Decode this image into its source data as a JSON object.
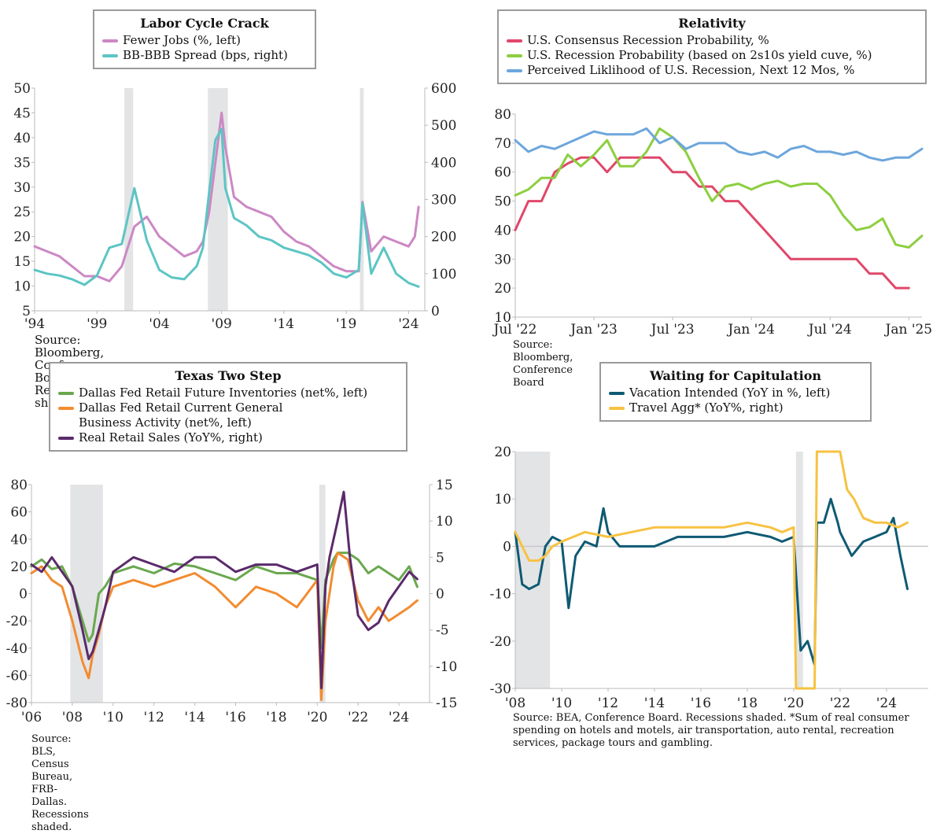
{
  "chart_data": [
    {
      "id": "labor",
      "type": "line",
      "title": "Labor Cycle Crack",
      "source": "Source: Bloomberg, Conference Board. Recessions shaded.",
      "x_ticks": [
        "'94",
        "'99",
        "'04",
        "'09",
        "'14",
        "'19",
        "'24"
      ],
      "xlim": [
        1994,
        2025.3
      ],
      "ylim_left": [
        5,
        50
      ],
      "yticks_left": [
        5,
        10,
        15,
        20,
        25,
        30,
        35,
        40,
        45,
        50
      ],
      "ylim_right": [
        0,
        600
      ],
      "yticks_right": [
        0,
        100,
        200,
        300,
        400,
        500,
        600
      ],
      "recessions": [
        [
          2001.2,
          2001.9
        ],
        [
          2007.9,
          2009.5
        ],
        [
          2020.1,
          2020.4
        ]
      ],
      "series": [
        {
          "name": "Fewer Jobs (%, left)",
          "color": "#cc88c4",
          "axis": "left",
          "x": [
            1994,
            1995,
            1996,
            1997,
            1998,
            1999,
            2000,
            2001,
            2002,
            2003,
            2004,
            2005,
            2006,
            2007,
            2007.5,
            2008,
            2008.5,
            2009,
            2009.3,
            2010,
            2011,
            2012,
            2013,
            2014,
            2015,
            2016,
            2017,
            2018,
            2019,
            2020,
            2020.3,
            2021,
            2022,
            2023,
            2024,
            2024.5,
            2024.8
          ],
          "y": [
            18,
            17,
            16,
            14,
            12,
            12,
            11,
            14,
            22,
            24,
            20,
            18,
            16,
            17,
            19,
            25,
            35,
            45,
            38,
            28,
            26,
            25,
            24,
            21,
            19,
            18,
            16,
            14,
            13,
            13,
            27,
            17,
            20,
            19,
            18,
            20,
            26
          ]
        },
        {
          "name": "BB-BBB Spread (bps, right)",
          "color": "#5cc5c4",
          "axis": "right",
          "x": [
            1994,
            1995,
            1996,
            1997,
            1998,
            1999,
            2000,
            2001,
            2002,
            2003,
            2004,
            2005,
            2006,
            2007,
            2007.5,
            2008,
            2008.5,
            2009,
            2009.3,
            2010,
            2011,
            2012,
            2013,
            2014,
            2015,
            2016,
            2017,
            2018,
            2019,
            2020,
            2020.3,
            2021,
            2022,
            2023,
            2024,
            2024.8
          ],
          "y": [
            110,
            100,
            95,
            85,
            70,
            95,
            170,
            180,
            330,
            190,
            110,
            90,
            85,
            120,
            170,
            320,
            460,
            490,
            330,
            250,
            230,
            200,
            190,
            170,
            160,
            150,
            130,
            100,
            90,
            110,
            290,
            100,
            170,
            100,
            75,
            65
          ]
        }
      ]
    },
    {
      "id": "relativity",
      "type": "line",
      "title": "Relativity",
      "source": "Source: Bloomberg, Conference Board",
      "x_ticks": [
        "Jul '22",
        "Jan '23",
        "Jul '23",
        "Jan '24",
        "Jul '24",
        "Jan '25"
      ],
      "xlim": [
        0,
        31
      ],
      "ylim": [
        10,
        80
      ],
      "yticks": [
        10,
        20,
        30,
        40,
        50,
        60,
        70,
        80
      ],
      "series": [
        {
          "name": "U.S. Consensus Recession Probability, %",
          "color": "#e0476a",
          "x": [
            0,
            1,
            2,
            3,
            4,
            5,
            6,
            7,
            8,
            9,
            10,
            11,
            12,
            13,
            14,
            15,
            16,
            17,
            18,
            19,
            20,
            21,
            22,
            23,
            24,
            25,
            26,
            27,
            28,
            29,
            30
          ],
          "y": [
            40,
            50,
            50,
            60,
            63,
            65,
            65,
            60,
            65,
            65,
            65,
            65,
            60,
            60,
            55,
            55,
            50,
            50,
            45,
            40,
            35,
            30,
            30,
            30,
            30,
            30,
            30,
            25,
            25,
            20,
            20
          ]
        },
        {
          "name": "U.S. Recession Probability (based on 2s10s yield cuve, %)",
          "color": "#8ccf3f",
          "x": [
            0,
            1,
            2,
            3,
            4,
            5,
            6,
            7,
            8,
            9,
            10,
            11,
            12,
            13,
            14,
            15,
            16,
            17,
            18,
            19,
            20,
            21,
            22,
            23,
            24,
            25,
            26,
            27,
            28,
            29,
            30,
            31
          ],
          "y": [
            52,
            54,
            58,
            58,
            66,
            62,
            66,
            71,
            62,
            62,
            67,
            75,
            72,
            67,
            58,
            50,
            55,
            56,
            54,
            56,
            57,
            55,
            56,
            56,
            52,
            45,
            40,
            41,
            44,
            35,
            34,
            38
          ]
        },
        {
          "name": "Perceived Liklihood of U.S. Recession, Next 12 Mos, %",
          "color": "#6da6dc",
          "x": [
            0,
            1,
            2,
            3,
            4,
            5,
            6,
            7,
            8,
            9,
            10,
            11,
            12,
            13,
            14,
            15,
            16,
            17,
            18,
            19,
            20,
            21,
            22,
            23,
            24,
            25,
            26,
            27,
            28,
            29,
            30,
            31
          ],
          "y": [
            71,
            67,
            69,
            68,
            70,
            72,
            74,
            73,
            73,
            73,
            75,
            70,
            72,
            68,
            70,
            70,
            70,
            67,
            66,
            67,
            65,
            68,
            69,
            67,
            67,
            66,
            67,
            65,
            64,
            65,
            65,
            68
          ]
        }
      ]
    },
    {
      "id": "texas",
      "type": "line",
      "title": "Texas Two Step",
      "source": "Source: BLS, Census Bureau, FRB-Dallas. Recessions shaded.",
      "x_ticks": [
        "'06",
        "'08",
        "'10",
        "'12",
        "'14",
        "'16",
        "'18",
        "'20",
        "'22",
        "'24"
      ],
      "xlim": [
        2006,
        2025.5
      ],
      "ylim_left": [
        -80,
        80
      ],
      "yticks_left": [
        -80,
        -60,
        -40,
        -20,
        0,
        20,
        40,
        60,
        80
      ],
      "ylim_right": [
        -15,
        15
      ],
      "yticks_right": [
        -15,
        -10,
        -5,
        0,
        5,
        10,
        15
      ],
      "recessions": [
        [
          2007.9,
          2009.5
        ],
        [
          2020.1,
          2020.4
        ]
      ],
      "series": [
        {
          "name": "Dallas Fed Retail Future Inventories (net%, left)",
          "color": "#6aa84f",
          "axis": "left",
          "x": [
            2006,
            2006.5,
            2007,
            2007.5,
            2008,
            2008.5,
            2008.8,
            2009,
            2009.3,
            2009.6,
            2010,
            2011,
            2012,
            2013,
            2014,
            2015,
            2016,
            2017,
            2018,
            2019,
            2020,
            2020.2,
            2020.4,
            2020.8,
            2021,
            2021.5,
            2022,
            2022.5,
            2023,
            2023.5,
            2024,
            2024.5,
            2024.9
          ],
          "y": [
            20,
            25,
            18,
            20,
            5,
            -20,
            -35,
            -30,
            0,
            5,
            15,
            20,
            15,
            22,
            20,
            15,
            10,
            20,
            15,
            15,
            10,
            -40,
            10,
            25,
            30,
            30,
            25,
            15,
            20,
            15,
            10,
            20,
            5
          ]
        },
        {
          "name": "Dallas Fed Retail Current General Business Activity (net%, left)",
          "color": "#f28c30",
          "axis": "left",
          "x": [
            2006,
            2006.5,
            2007,
            2007.5,
            2008,
            2008.5,
            2008.8,
            2009,
            2009.3,
            2009.6,
            2010,
            2011,
            2012,
            2013,
            2014,
            2015,
            2016,
            2017,
            2018,
            2019,
            2020,
            2020.2,
            2020.4,
            2020.8,
            2021,
            2021.5,
            2022,
            2022.5,
            2023,
            2023.5,
            2024,
            2024.5,
            2024.9
          ],
          "y": [
            15,
            20,
            10,
            5,
            -20,
            -50,
            -62,
            -45,
            -30,
            -10,
            5,
            10,
            5,
            10,
            15,
            5,
            -10,
            5,
            0,
            -10,
            10,
            -78,
            -20,
            20,
            30,
            25,
            -5,
            -20,
            -10,
            -20,
            -15,
            -10,
            -5
          ]
        },
        {
          "name": "Real Retail Sales (YoY%, right)",
          "color": "#5b2a6b",
          "axis": "right",
          "x": [
            2006,
            2006.5,
            2007,
            2007.5,
            2008,
            2008.5,
            2008.8,
            2009,
            2009.3,
            2009.6,
            2010,
            2011,
            2012,
            2013,
            2014,
            2015,
            2016,
            2017,
            2018,
            2019,
            2020,
            2020.2,
            2020.4,
            2020.6,
            2021,
            2021.3,
            2021.6,
            2022,
            2022.5,
            2023,
            2023.5,
            2024,
            2024.5,
            2024.9
          ],
          "y": [
            4,
            3,
            5,
            3,
            1,
            -5,
            -9,
            -8,
            -5,
            -2,
            3,
            5,
            4,
            3,
            5,
            5,
            3,
            4,
            4,
            3,
            4,
            -13,
            1,
            5,
            10,
            14,
            5,
            -3,
            -5,
            -4,
            -1,
            1,
            3,
            2
          ]
        }
      ]
    },
    {
      "id": "capitulation",
      "type": "line",
      "title": "Waiting for Capitulation",
      "source": "Source: BEA, Conference Board. Recessions shaded. *Sum of real consumer spending on hotels and motels, air transportation, auto rental, recreation services, package tours and gambling.",
      "x_ticks": [
        "'08",
        "'10",
        "'12",
        "'14",
        "'16",
        "'18",
        "'20",
        "'22",
        "'24"
      ],
      "xlim": [
        2008,
        2025.8
      ],
      "ylim": [
        -30,
        20
      ],
      "yticks": [
        -30,
        -20,
        -10,
        0,
        10,
        20
      ],
      "recessions": [
        [
          2008,
          2009.5
        ],
        [
          2020.1,
          2020.4
        ]
      ],
      "series": [
        {
          "name": "Vacation Intended (YoY in %, left)",
          "color": "#0f5a73",
          "axis": "left",
          "x": [
            2008,
            2008.3,
            2008.6,
            2009,
            2009.3,
            2009.6,
            2010,
            2010.3,
            2010.6,
            2011,
            2011.5,
            2011.8,
            2012,
            2012.5,
            2013,
            2014,
            2015,
            2016,
            2017,
            2018,
            2019,
            2019.5,
            2020,
            2020.3,
            2020.6,
            2020.9,
            2021,
            2021.3,
            2021.6,
            2021.9,
            2022,
            2022.5,
            2023,
            2023.5,
            2024,
            2024.3,
            2024.6,
            2024.9
          ],
          "y": [
            3,
            -8,
            -9,
            -8,
            0,
            2,
            1,
            -13,
            -2,
            1,
            0,
            8,
            3,
            0,
            0,
            0,
            2,
            2,
            2,
            3,
            2,
            1,
            2,
            -22,
            -20,
            -25,
            5,
            5,
            10,
            5,
            3,
            -2,
            1,
            2,
            3,
            6,
            -2,
            -9
          ]
        },
        {
          "name": "Travel Agg* (YoY%, right)",
          "color": "#f7c242",
          "axis": "right",
          "x": [
            2008,
            2008.3,
            2008.6,
            2009,
            2009.3,
            2009.6,
            2010,
            2011,
            2012,
            2013,
            2014,
            2015,
            2016,
            2017,
            2018,
            2019,
            2019.5,
            2020,
            2020.1,
            2020.2,
            2020.9,
            2021,
            2021.3,
            2021.6,
            2022,
            2022.3,
            2022.6,
            2023,
            2023.5,
            2024,
            2024.5,
            2024.9
          ],
          "y": [
            3,
            0,
            -3,
            -3,
            -2,
            0,
            1,
            3,
            2,
            3,
            4,
            4,
            4,
            4,
            5,
            4,
            3,
            4,
            -30,
            -30,
            -30,
            20,
            20,
            20,
            20,
            12,
            10,
            6,
            5,
            5,
            4,
            5
          ]
        }
      ]
    }
  ]
}
